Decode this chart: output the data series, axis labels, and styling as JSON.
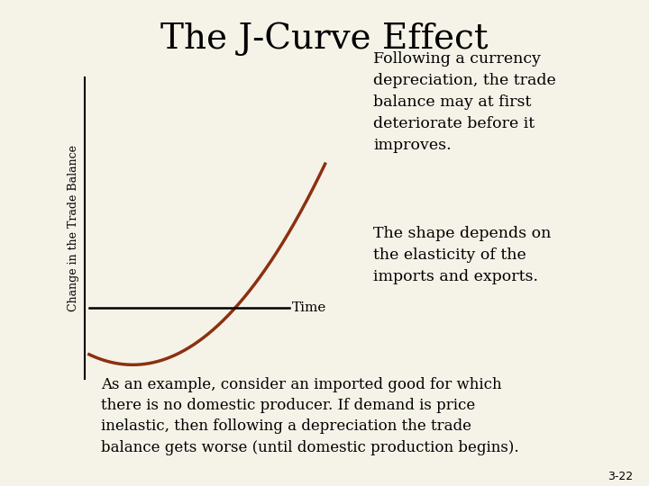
{
  "title": "The J-Curve Effect",
  "title_fontsize": 28,
  "title_font": "serif",
  "top_bar_color": "#1a2a5e",
  "bottom_bar_color": "#b8ae90",
  "curve_color": "#8b3010",
  "curve_linewidth": 2.5,
  "ylabel": "Change in the Trade Balance",
  "ylabel_fontsize": 9,
  "xlabel_label": "Time",
  "xlabel_fontsize": 11,
  "text1_line1": "Following a currency",
  "text1_line2": "depreciation, the trade",
  "text1_line3": "balance may at first",
  "text1_line4": "deteriorate before it",
  "text1_line5": "improves.",
  "text1_fontsize": 12.5,
  "text2_line1": "The shape depends on",
  "text2_line2": "the elasticity of the",
  "text2_line3": "imports and exports.",
  "text2_fontsize": 12.5,
  "text3": "As an example, consider an imported good for which\nthere is no domestic producer. If demand is price\ninelastic, then following a depreciation the trade\nbalance gets worse (until domestic production begins).",
  "text3_fontsize": 12,
  "slide_number": "3-22",
  "slide_number_fontsize": 9,
  "main_bg": "#f5f2e8"
}
